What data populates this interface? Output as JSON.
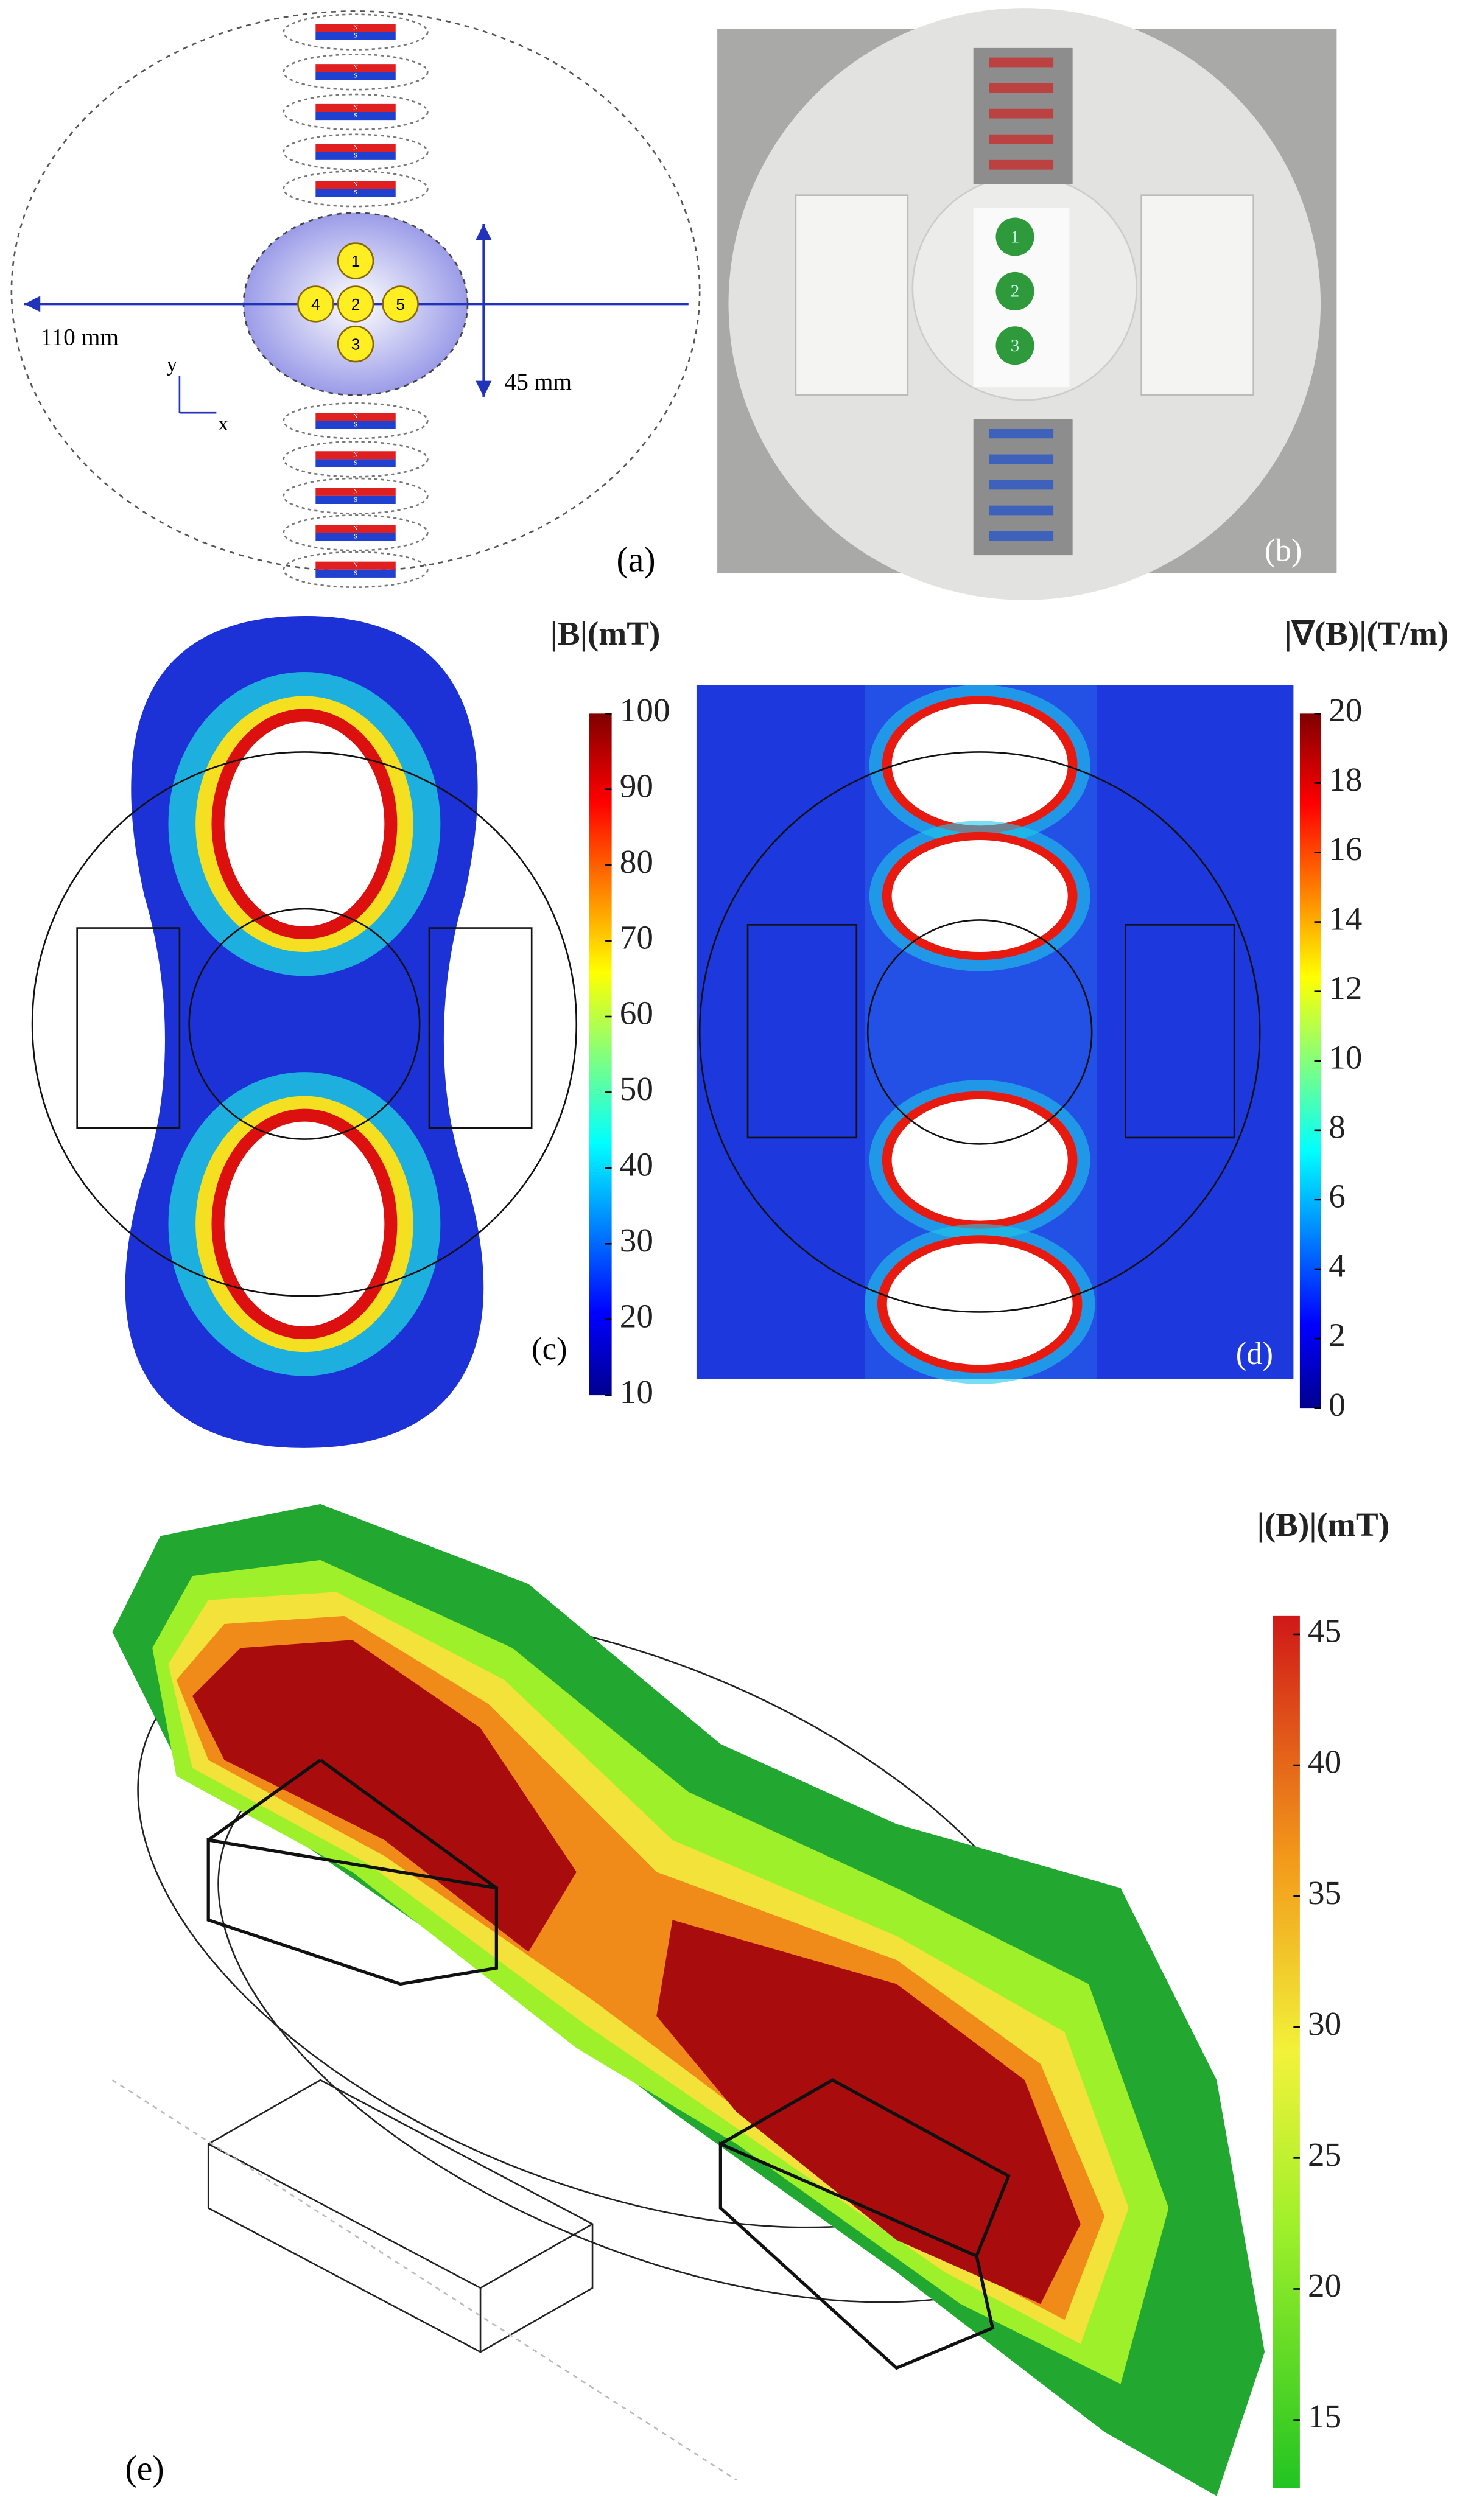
{
  "panel_a": {
    "label": "(a)",
    "width_label": "110 mm",
    "height_label": "45 mm",
    "axis_y": "y",
    "axis_x": "x",
    "positions": [
      "1",
      "2",
      "3",
      "4",
      "5"
    ],
    "magnet_poles": [
      "N",
      "S"
    ]
  },
  "panel_b": {
    "label": "(b)",
    "photo_markers": [
      "1",
      "2",
      "3"
    ]
  },
  "panel_c": {
    "label": "(c)",
    "colorbar": {
      "title": "|B|(mT)",
      "lim": [
        10,
        100
      ],
      "ticks": [
        10,
        20,
        30,
        40,
        50,
        60,
        70,
        80,
        90,
        100
      ]
    }
  },
  "panel_d": {
    "label": "(d)",
    "colorbar": {
      "title": "|∇(B)|(T/m)",
      "lim": [
        0,
        20
      ],
      "ticks": [
        0,
        2,
        4,
        6,
        8,
        10,
        12,
        14,
        16,
        18,
        20
      ]
    }
  },
  "panel_e": {
    "label": "(e)",
    "colorbar": {
      "title": "|(B)|(mT)",
      "lim": [
        12.4,
        45.7
      ],
      "ticks": [
        15,
        20,
        25,
        30,
        35,
        40,
        45
      ]
    }
  }
}
